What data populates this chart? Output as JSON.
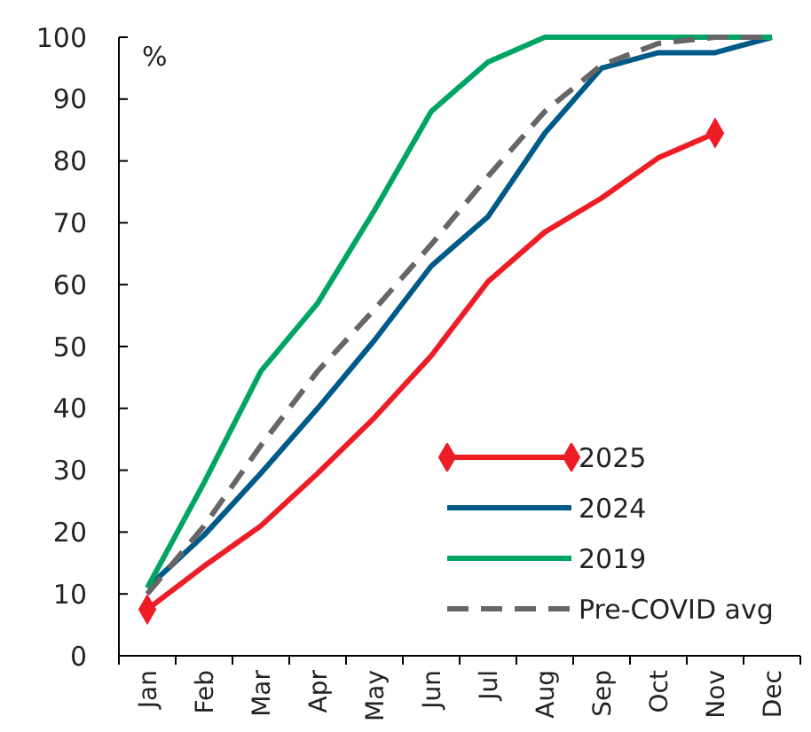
{
  "chart_data": {
    "type": "line",
    "ylabel": "%",
    "categories": [
      "Jan",
      "Feb",
      "Mar",
      "Apr",
      "May",
      "Jun",
      "Jul",
      "Aug",
      "Sep",
      "Oct",
      "Nov",
      "Dec"
    ],
    "ylim": [
      0,
      100
    ],
    "yticks": [
      0,
      10,
      20,
      30,
      40,
      50,
      60,
      70,
      80,
      90,
      100
    ],
    "grid": false,
    "legend": "bottom right",
    "series": [
      {
        "name": "2025",
        "color": "#ee1c25",
        "values": [
          7.5,
          14.5,
          21,
          29.5,
          38.5,
          48.5,
          60.5,
          68.5,
          74,
          80.5,
          84.5,
          null
        ]
      },
      {
        "type": "scatter",
        "color": "#ee1c25",
        "marker": "diamond",
        "x": [
          "Jan",
          "Nov"
        ],
        "values": [
          7.5,
          84.5
        ]
      },
      {
        "name": "2024",
        "color": "#005a87",
        "values": [
          11,
          19.5,
          29.5,
          40,
          51,
          63,
          71,
          84.5,
          95,
          97.5,
          97.5,
          100
        ]
      },
      {
        "name": "2019",
        "color": "#00a563",
        "values": [
          11,
          28,
          46,
          57,
          72,
          88,
          96,
          100,
          100,
          100,
          100,
          100
        ]
      },
      {
        "name": "Pre-COVID avg",
        "color": "#666666",
        "line_style": "dashed",
        "values": [
          10,
          21,
          34,
          46,
          56,
          66.5,
          77.5,
          88,
          95.5,
          99,
          100,
          100
        ]
      }
    ]
  }
}
